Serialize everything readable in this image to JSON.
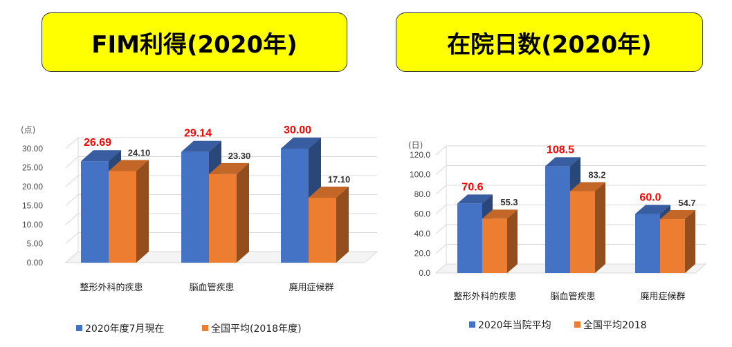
{
  "titles": {
    "left": "FIM利得(2020年)",
    "right": "在院日数(2020年)"
  },
  "colors": {
    "title_bg": "#ffff00",
    "series1": "#4472c4",
    "series2": "#ed7d31",
    "label_highlight": "#ff0000"
  },
  "chart_data": [
    {
      "type": "bar",
      "unit_label": "(点)",
      "categories": [
        "整形外科的疾患",
        "脳血管疾患",
        "廃用症候群"
      ],
      "series": [
        {
          "name": "2020年度7月現在",
          "values": [
            26.69,
            29.14,
            30.0
          ],
          "labels": [
            "26.69",
            "29.14",
            "30.00"
          ]
        },
        {
          "name": "全国平均(2018年度)",
          "values": [
            24.1,
            23.3,
            17.1
          ],
          "labels": [
            "24.10",
            "23.30",
            "17.10"
          ]
        }
      ],
      "yticks": [
        "0.00",
        "5.00",
        "10.00",
        "15.00",
        "20.00",
        "25.00",
        "30.00"
      ],
      "ylim": [
        0,
        30
      ],
      "legend": "bottom"
    },
    {
      "type": "bar",
      "unit_label": "(日)",
      "categories": [
        "整形外科的疾患",
        "脳血管疾患",
        "廃用症候群"
      ],
      "series": [
        {
          "name": "2020年当院平均",
          "values": [
            70.6,
            108.5,
            60.0
          ],
          "labels": [
            "70.6",
            "108.5",
            "60.0"
          ]
        },
        {
          "name": "全国平均2018",
          "values": [
            55.3,
            83.2,
            54.7
          ],
          "labels": [
            "55.3",
            "83.2",
            "54.7"
          ]
        }
      ],
      "yticks": [
        "0.0",
        "20.0",
        "40.0",
        "60.0",
        "80.0",
        "100.0",
        "120.0"
      ],
      "ylim": [
        0,
        120
      ],
      "legend": "bottom"
    }
  ]
}
